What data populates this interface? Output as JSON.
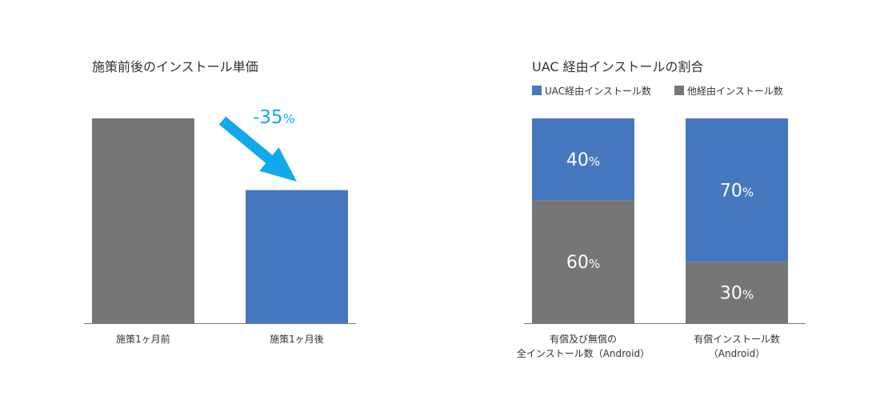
{
  "colors": {
    "gray": "#767676",
    "blue": "#4678bf",
    "arrow": "#10a9ea",
    "axis": "#777777",
    "text": "#333333",
    "label_white": "#ffffff"
  },
  "chart_data": [
    {
      "type": "bar",
      "title": "施策前後のインストール単価",
      "categories": [
        "施策1ヶ月前",
        "施策1ヶ月後"
      ],
      "values": [
        100,
        65
      ],
      "ylim": [
        0,
        100
      ],
      "bar_colors": [
        "gray",
        "blue"
      ],
      "annotation": {
        "number": "-35",
        "unit": "%",
        "icon": "down-right-arrow-icon"
      },
      "grid": false,
      "legend": "none"
    },
    {
      "type": "bar",
      "stacked": true,
      "title": "UAC 経由インストールの割合",
      "categories": [
        [
          "有償及び無償の",
          "全インストール数（Android）"
        ],
        [
          "有償インストール数",
          "（Android）"
        ]
      ],
      "series": [
        {
          "name": "UAC経由インストール数",
          "color": "blue",
          "values": [
            40,
            70
          ]
        },
        {
          "name": "他経由インストール数",
          "color": "gray",
          "values": [
            60,
            30
          ]
        }
      ],
      "unit": "%",
      "ylim": [
        0,
        100
      ],
      "grid": false,
      "legend": "top-left"
    }
  ]
}
